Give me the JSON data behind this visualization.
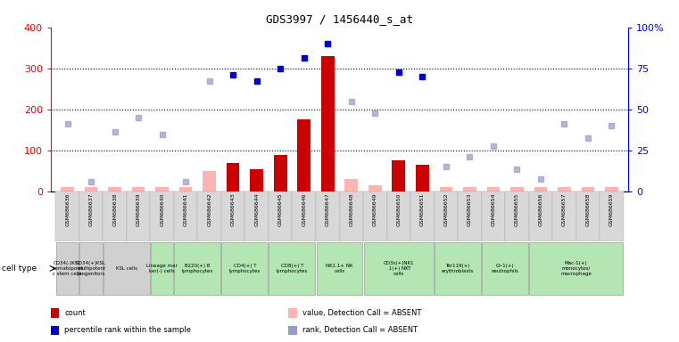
{
  "title": "GDS3997 / 1456440_s_at",
  "samples": [
    "GSM686636",
    "GSM686637",
    "GSM686638",
    "GSM686639",
    "GSM686640",
    "GSM686641",
    "GSM686642",
    "GSM686643",
    "GSM686644",
    "GSM686645",
    "GSM686646",
    "GSM686647",
    "GSM686648",
    "GSM686649",
    "GSM686650",
    "GSM686651",
    "GSM686652",
    "GSM686653",
    "GSM686654",
    "GSM686655",
    "GSM686656",
    "GSM686657",
    "GSM686658",
    "GSM686659"
  ],
  "count_present": [
    null,
    null,
    null,
    null,
    null,
    null,
    null,
    70,
    55,
    90,
    175,
    330,
    null,
    null,
    75,
    65,
    null,
    null,
    null,
    null,
    null,
    null,
    null,
    null
  ],
  "count_absent": [
    10,
    10,
    10,
    10,
    10,
    10,
    50,
    null,
    null,
    null,
    null,
    null,
    30,
    15,
    null,
    null,
    10,
    10,
    10,
    10,
    10,
    10,
    10,
    10
  ],
  "rank_present": [
    null,
    null,
    null,
    null,
    null,
    null,
    null,
    285,
    270,
    300,
    325,
    360,
    null,
    null,
    290,
    280,
    null,
    null,
    null,
    null,
    null,
    null,
    null,
    null
  ],
  "rank_absent": [
    165,
    25,
    145,
    180,
    140,
    25,
    270,
    null,
    null,
    null,
    null,
    null,
    220,
    190,
    null,
    null,
    60,
    85,
    110,
    55,
    30,
    165,
    130,
    160
  ],
  "ylim_left": [
    0,
    400
  ],
  "ylim_right": [
    0,
    100
  ],
  "yticks_left": [
    0,
    100,
    200,
    300,
    400
  ],
  "yticks_right": [
    0,
    25,
    50,
    75,
    100
  ],
  "bar_color": "#cc0000",
  "absent_bar_color": "#ffb3b3",
  "rank_present_color": "#0000cc",
  "rank_absent_color": "#9999cc",
  "cell_groups": [
    {
      "start": 0,
      "end": 0,
      "label": "CD34(-)KSL\nhematopoiet\nc stem cells",
      "color": "#d0d0d0"
    },
    {
      "start": 1,
      "end": 1,
      "label": "CD34(+)KSL\nmultipotent\nprogenitors",
      "color": "#d0d0d0"
    },
    {
      "start": 2,
      "end": 3,
      "label": "KSL cells",
      "color": "#d0d0d0"
    },
    {
      "start": 4,
      "end": 4,
      "label": "Lineage mar\nker(-) cells",
      "color": "#b3e6b3"
    },
    {
      "start": 5,
      "end": 6,
      "label": "B220(+) B\nlymphocytes",
      "color": "#b3e6b3"
    },
    {
      "start": 7,
      "end": 8,
      "label": "CD4(+) T\nlymphocytes",
      "color": "#b3e6b3"
    },
    {
      "start": 9,
      "end": 10,
      "label": "CD8(+) T\nlymphocytes",
      "color": "#b3e6b3"
    },
    {
      "start": 11,
      "end": 12,
      "label": "NK1.1+ NK\ncells",
      "color": "#b3e6b3"
    },
    {
      "start": 13,
      "end": 15,
      "label": "CD3s(+)NK1\n.1(+) NKT\ncells",
      "color": "#b3e6b3"
    },
    {
      "start": 16,
      "end": 17,
      "label": "Ter119(+)\nerythroblasts",
      "color": "#b3e6b3"
    },
    {
      "start": 18,
      "end": 19,
      "label": "Gr-1(+)\nneutrophils",
      "color": "#b3e6b3"
    },
    {
      "start": 20,
      "end": 23,
      "label": "Mac-1(+)\nmonocytes/\nmacrophage",
      "color": "#b3e6b3"
    }
  ],
  "legend": [
    {
      "color": "#cc0000",
      "label": "count"
    },
    {
      "color": "#0000cc",
      "label": "percentile rank within the sample"
    },
    {
      "color": "#ffb3b3",
      "label": "value, Detection Call = ABSENT"
    },
    {
      "color": "#9999cc",
      "label": "rank, Detection Call = ABSENT"
    }
  ]
}
